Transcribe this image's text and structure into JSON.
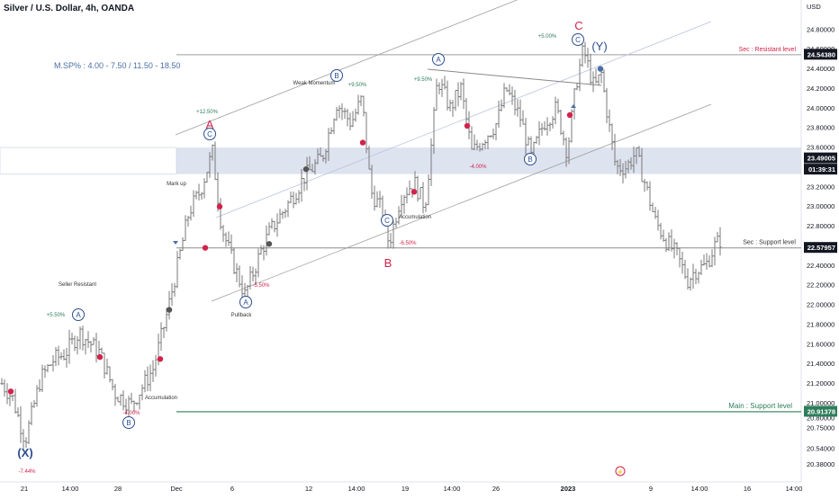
{
  "header": {
    "title": "Silver / U.S. Dollar, 4h, OANDA",
    "currency": "USD"
  },
  "notes": {
    "msp": "M.SP% : 4.00 - 7.50 / 11.50 - 18.50"
  },
  "colors": {
    "bars": "#7a7a7a",
    "channel": "#9e9e9e",
    "zone": "#d1d9ea",
    "resistance_line": "#9e9e9e",
    "support_line": "#8c8c8c",
    "main_support": "#2e7d5b",
    "wave_blue": "#2a4d8f",
    "wave_red": "#d2234b",
    "price_tag": "#131722"
  },
  "chart_data": {
    "type": "bar",
    "title": "Silver / U.S. Dollar, 4h, OANDA",
    "ylim": [
      20.2,
      25.1
    ],
    "y_ticks": [
      "24.80000",
      "24.60000",
      "24.40000",
      "24.20000",
      "24.00000",
      "23.80000",
      "23.60000",
      "23.40000",
      "23.20000",
      "23.00000",
      "22.80000",
      "22.60000",
      "22.40000",
      "22.20000",
      "22.00000",
      "21.80000",
      "21.60000",
      "21.40000",
      "21.20000",
      "21.00000",
      "20.80000",
      "20.75000",
      "20.54000",
      "20.38000"
    ],
    "x_ticks": [
      "21",
      "14:00",
      "28",
      "Dec",
      "6",
      "12",
      "14:00",
      "19",
      "14:00",
      "26",
      "2023",
      "9",
      "14:00",
      "16",
      "14:00"
    ],
    "price_tags": [
      {
        "label": "24.54380",
        "value": 24.5438,
        "kind": "resistance"
      },
      {
        "label": "23.49005",
        "value": 23.49,
        "kind": "current"
      },
      {
        "label": "01:39:31",
        "value": 23.32,
        "kind": "timer"
      },
      {
        "label": "22.57957",
        "value": 22.5796,
        "kind": "support"
      },
      {
        "label": "20.91378",
        "value": 20.9138,
        "kind": "main"
      }
    ],
    "levels": [
      {
        "name": "Sec : Resistant level",
        "value": 24.5438
      },
      {
        "name": "Sec : Support level",
        "value": 22.5796
      },
      {
        "name": "Main : Support level",
        "value": 20.9138
      }
    ],
    "zone": {
      "from": 23.33,
      "to": 23.6
    },
    "ohlc_summary": {
      "start_close": 21.1,
      "low_wave_X": 20.62,
      "wave_A_high": 23.55,
      "wave_B_low": 22.62,
      "wave_C_high": 24.6,
      "latest_close": 22.65
    },
    "labels": [
      {
        "text": "(X)",
        "style": "wave-blue-large"
      },
      {
        "text": "-7.44%"
      },
      {
        "text": "+5.50%"
      },
      {
        "text": "Seller Resistant"
      },
      {
        "text": "Accumulation"
      },
      {
        "text": "-4.00%"
      },
      {
        "text": "Mark up"
      },
      {
        "text": "+12.50%"
      },
      {
        "text": "A",
        "style": "wave-red"
      },
      {
        "text": "Pullback"
      },
      {
        "text": "-5.50%"
      },
      {
        "text": "Weak Momentum"
      },
      {
        "text": "+9.50%"
      },
      {
        "text": "Accumulation"
      },
      {
        "text": "-6.50%"
      },
      {
        "text": "B",
        "style": "wave-red"
      },
      {
        "text": "+9.50%"
      },
      {
        "text": "-4.00%"
      },
      {
        "text": "+5.00%"
      },
      {
        "text": "C",
        "style": "wave-red"
      },
      {
        "text": "(Y)",
        "style": "wave-blue-large"
      }
    ],
    "circled": [
      "A",
      "B",
      "A",
      "B",
      "A",
      "C",
      "C",
      "A",
      "B",
      "C"
    ]
  }
}
